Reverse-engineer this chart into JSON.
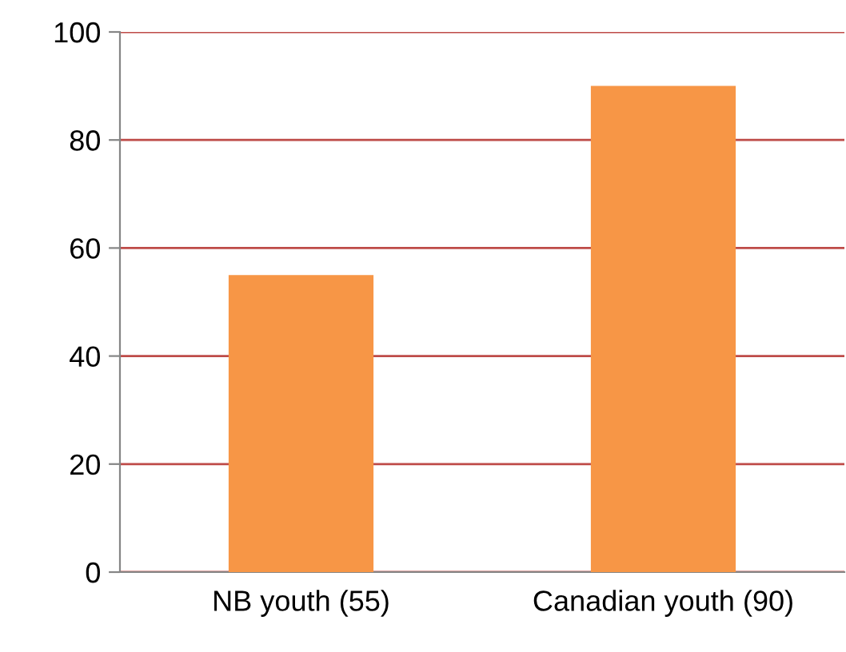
{
  "chart_data": {
    "type": "bar",
    "categories": [
      "NB youth (55)",
      "Canadian youth (90)"
    ],
    "values": [
      55,
      90
    ],
    "color": "#f79646",
    "ylim": [
      0,
      100
    ],
    "yticks": [
      0,
      20,
      40,
      60,
      80,
      100
    ],
    "grid": "y",
    "legend": false
  }
}
